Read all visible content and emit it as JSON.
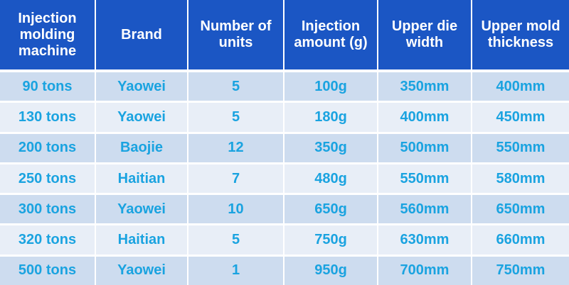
{
  "table": {
    "headers": [
      "Injection molding machine",
      "Brand",
      "Number of units",
      "Injection amount (g)",
      "Upper die width",
      "Upper mold thickness"
    ],
    "rows": [
      [
        "90 tons",
        "Yaowei",
        "5",
        "100g",
        "350mm",
        "400mm"
      ],
      [
        "130 tons",
        "Yaowei",
        "5",
        "180g",
        "400mm",
        "450mm"
      ],
      [
        "200 tons",
        "Baojie",
        "12",
        "350g",
        "500mm",
        "550mm"
      ],
      [
        "250 tons",
        "Haitian",
        "7",
        "480g",
        "550mm",
        "580mm"
      ],
      [
        "300 tons",
        "Yaowei",
        "10",
        "650g",
        "560mm",
        "650mm"
      ],
      [
        "320 tons",
        "Haitian",
        "5",
        "750g",
        "630mm",
        "660mm"
      ],
      [
        "500 tons",
        "Yaowei",
        "1",
        "950g",
        "700mm",
        "750mm"
      ]
    ]
  },
  "colors": {
    "header_bg": "#1b56c4",
    "header_text": "#ffffff",
    "row_odd_bg": "#cddcef",
    "row_even_bg": "#e8eef7",
    "cell_text": "#1aa3e0"
  }
}
